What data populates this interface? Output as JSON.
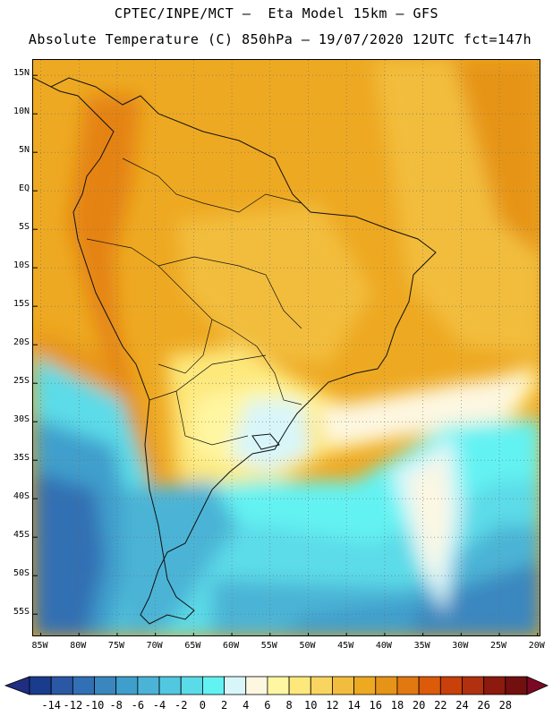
{
  "title_line1": "CPTEC/INPE/MCT –  Eta Model 15km – GFS",
  "title_line2": "Absolute Temperature (C) 850hPa – 19/07/2020 12UTC fct=147h",
  "map": {
    "lat_labels": [
      "15N",
      "10N",
      "5N",
      "EQ",
      "5S",
      "10S",
      "15S",
      "20S",
      "25S",
      "30S",
      "35S",
      "40S",
      "45S",
      "50S",
      "55S"
    ],
    "lon_labels": [
      "85W",
      "80W",
      "75W",
      "70W",
      "65W",
      "60W",
      "55W",
      "50W",
      "45W",
      "40W",
      "35W",
      "30W",
      "25W",
      "20W"
    ],
    "lat_range": [
      17,
      -58
    ],
    "lon_range": [
      -86,
      -19.5
    ]
  },
  "colorbar": {
    "labels": [
      "-14",
      "-12",
      "-10",
      "-8",
      "-6",
      "-4",
      "-2",
      "0",
      "2",
      "4",
      "6",
      "8",
      "10",
      "12",
      "14",
      "16",
      "18",
      "20",
      "22",
      "24",
      "26",
      "28"
    ],
    "colors": [
      "#1a3c8c",
      "#2a58a4",
      "#3170b4",
      "#3a87c0",
      "#3f9fcc",
      "#4bb4d6",
      "#52c7e0",
      "#5bdbe8",
      "#63f2f2",
      "#d8f6fa",
      "#fdf7e1",
      "#fff6a2",
      "#fde87c",
      "#f8d560",
      "#f2bd3e",
      "#eea922",
      "#e69418",
      "#e27910",
      "#dc5b0a",
      "#c8400a",
      "#b03010",
      "#8c1a0e",
      "#721010"
    ],
    "low_arrow_color": "#1f2e80",
    "high_arrow_color": "#7a0a24"
  }
}
